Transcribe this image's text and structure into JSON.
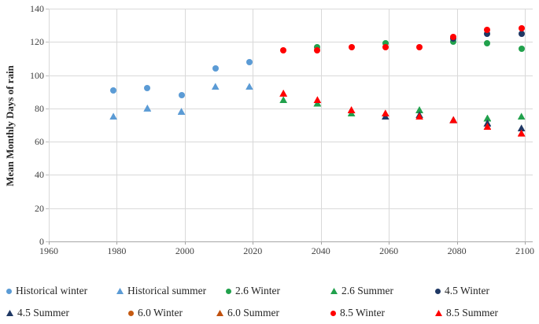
{
  "chart_data": {
    "type": "scatter",
    "title": "",
    "xlabel": "",
    "ylabel": "Mean Monthly Days of rain",
    "xlim": [
      1960,
      2100
    ],
    "ylim": [
      0,
      140
    ],
    "x_ticks": [
      1960,
      1980,
      2000,
      2020,
      2040,
      2060,
      2080,
      2100
    ],
    "y_ticks": [
      0,
      20,
      40,
      60,
      80,
      100,
      120,
      140
    ],
    "grid": true,
    "legend_position": "bottom",
    "series": [
      {
        "name": "Historical winter",
        "marker": "circle",
        "color": "#5b9bd5",
        "points": [
          [
            1979,
            91
          ],
          [
            1989,
            92
          ],
          [
            1999,
            88
          ],
          [
            2009,
            104
          ],
          [
            2019,
            108
          ]
        ]
      },
      {
        "name": "Historical summer",
        "marker": "triangle",
        "color": "#5b9bd5",
        "points": [
          [
            1979,
            75
          ],
          [
            1989,
            80
          ],
          [
            1999,
            78
          ],
          [
            2009,
            93
          ],
          [
            2019,
            93
          ]
        ]
      },
      {
        "name": "2.6 Winter",
        "marker": "circle",
        "color": "#21a14c",
        "points": [
          [
            2039,
            117
          ],
          [
            2059,
            119
          ],
          [
            2079,
            120
          ],
          [
            2089,
            119
          ],
          [
            2099,
            116
          ]
        ]
      },
      {
        "name": "2.6 Summer",
        "marker": "triangle",
        "color": "#21a14c",
        "points": [
          [
            2029,
            85
          ],
          [
            2039,
            83
          ],
          [
            2049,
            77
          ],
          [
            2069,
            79
          ],
          [
            2089,
            74
          ],
          [
            2099,
            75
          ]
        ]
      },
      {
        "name": "4.5 Winter",
        "marker": "circle",
        "color": "#1f3864",
        "points": [
          [
            2079,
            122
          ],
          [
            2089,
            125
          ],
          [
            2099,
            125
          ]
        ]
      },
      {
        "name": "4.5 Summer",
        "marker": "triangle",
        "color": "#1f3864",
        "points": [
          [
            2059,
            75
          ],
          [
            2069,
            76
          ],
          [
            2079,
            73
          ],
          [
            2089,
            71
          ],
          [
            2099,
            68
          ]
        ]
      },
      {
        "name": "6.0 Winter",
        "marker": "circle",
        "color": "#c55a11",
        "points": []
      },
      {
        "name": "6.0 Summer",
        "marker": "triangle",
        "color": "#c0510e",
        "points": []
      },
      {
        "name": "8.5 Winter",
        "marker": "circle",
        "color": "#ff0000",
        "points": [
          [
            2029,
            115
          ],
          [
            2039,
            115
          ],
          [
            2049,
            117
          ],
          [
            2059,
            117
          ],
          [
            2069,
            117
          ],
          [
            2079,
            123
          ],
          [
            2089,
            127
          ],
          [
            2099,
            128
          ]
        ]
      },
      {
        "name": "8.5 Summer",
        "marker": "triangle",
        "color": "#ff0000",
        "points": [
          [
            2029,
            89
          ],
          [
            2039,
            85
          ],
          [
            2049,
            79
          ],
          [
            2059,
            77
          ],
          [
            2069,
            75
          ],
          [
            2079,
            73
          ],
          [
            2089,
            69
          ],
          [
            2099,
            65
          ]
        ]
      }
    ]
  }
}
